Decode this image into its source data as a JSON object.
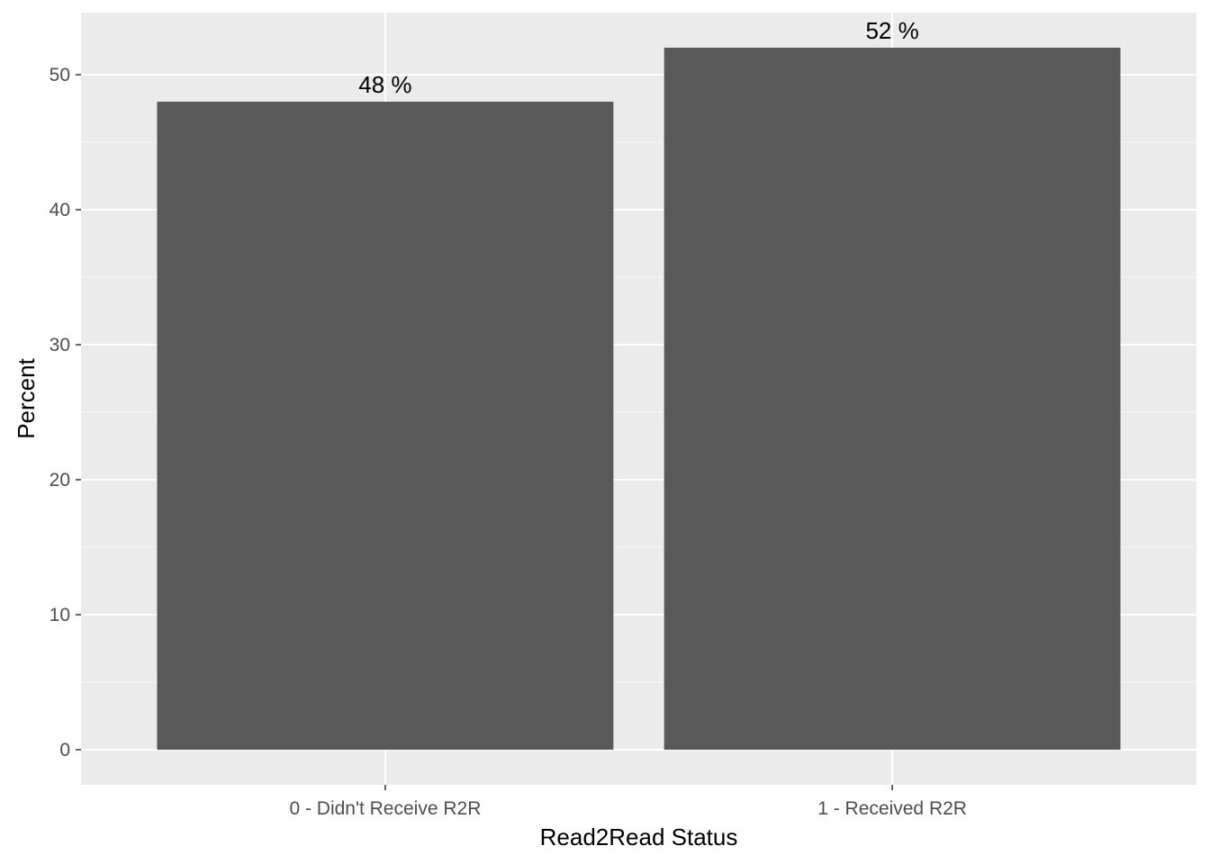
{
  "chart_data": {
    "type": "bar",
    "title": "",
    "xlabel": "Read2Read Status",
    "ylabel": "Percent",
    "categories": [
      "0 - Didn't Receive R2R",
      "1 - Received R2R"
    ],
    "values": [
      48,
      52
    ],
    "data_labels": [
      "48 %",
      "52 %"
    ],
    "ylim": [
      -2.6,
      54.6
    ],
    "yticks": [
      0,
      10,
      20,
      30,
      40,
      50
    ],
    "ytick_labels": [
      "0",
      "10",
      "20",
      "30",
      "40",
      "50"
    ],
    "grid": true,
    "legend": "none",
    "colors": {
      "bar": "#595959",
      "panel": "#ebebeb",
      "grid_major": "#ffffff",
      "grid_minor": "#f7f7f7",
      "tick": "#333333"
    }
  }
}
